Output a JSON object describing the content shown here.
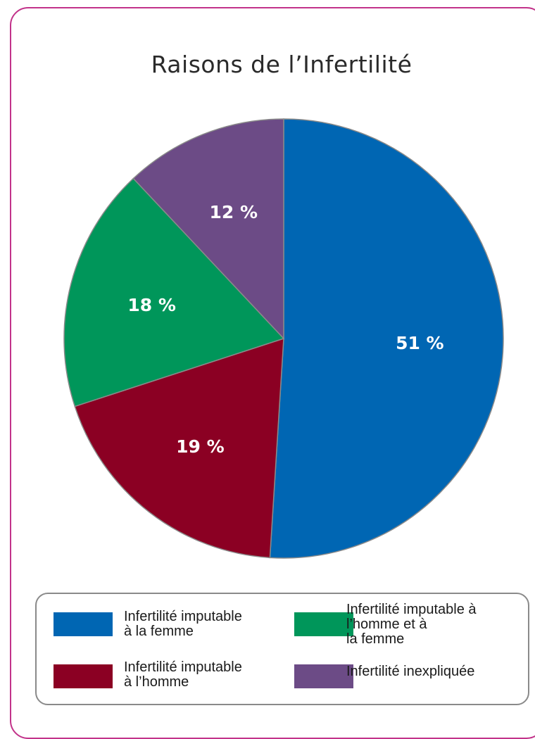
{
  "chart_data": {
    "type": "pie",
    "title": "Raisons de l’Infertilité",
    "slices": [
      {
        "label": "Infertilité imputable\nà la femme",
        "value": 51,
        "display": "51 %",
        "color": "#0066b3"
      },
      {
        "label": "Infertilité imputable\nà l’homme",
        "value": 19,
        "display": "19 %",
        "color": "#8b0023"
      },
      {
        "label": "Infertilité imputable à\nl’homme et à\nla femme",
        "value": 18,
        "display": "18 %",
        "color": "#00965a"
      },
      {
        "label": "Infertilité inexpliquée",
        "value": 12,
        "display": "12 %",
        "color": "#6c4b86"
      }
    ],
    "start": "12 o'clock",
    "direction": "clockwise",
    "legend": "bottom"
  }
}
